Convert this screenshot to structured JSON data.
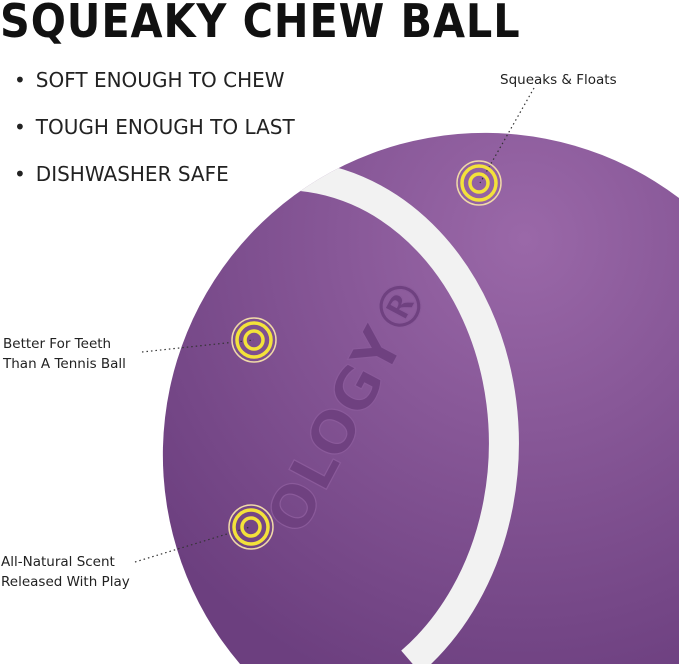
{
  "title": "SQUEAKY CHEW BALL",
  "bullets": [
    "SOFT ENOUGH TO CHEW",
    "TOUGH ENOUGH TO LAST",
    "DISHWASHER SAFE"
  ],
  "callouts": {
    "squeaks": "Squeaks & Floats",
    "teeth_line1": "Better For Teeth",
    "teeth_line2": "Than A Tennis Ball",
    "scent_line1": "All-Natural Scent",
    "scent_line2": "Released With Play"
  },
  "logo_text": "OLOGY®",
  "colors": {
    "ball": "#7b4a8c",
    "band": "#f2f2f2",
    "marker": "#f3e23a"
  }
}
